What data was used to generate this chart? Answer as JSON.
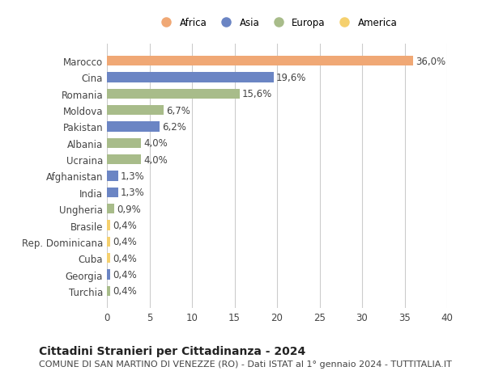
{
  "categories": [
    "Marocco",
    "Cina",
    "Romania",
    "Moldova",
    "Pakistan",
    "Albania",
    "Ucraina",
    "Afghanistan",
    "India",
    "Ungheria",
    "Brasile",
    "Rep. Dominicana",
    "Cuba",
    "Georgia",
    "Turchia"
  ],
  "values": [
    36.0,
    19.6,
    15.6,
    6.7,
    6.2,
    4.0,
    4.0,
    1.3,
    1.3,
    0.9,
    0.4,
    0.4,
    0.4,
    0.4,
    0.4
  ],
  "labels": [
    "36,0%",
    "19,6%",
    "15,6%",
    "6,7%",
    "6,2%",
    "4,0%",
    "4,0%",
    "1,3%",
    "1,3%",
    "0,9%",
    "0,4%",
    "0,4%",
    "0,4%",
    "0,4%",
    "0,4%"
  ],
  "continents": [
    "Africa",
    "Asia",
    "Europa",
    "Europa",
    "Asia",
    "Europa",
    "Europa",
    "Asia",
    "Asia",
    "Europa",
    "America",
    "America",
    "America",
    "Asia",
    "Europa"
  ],
  "colors": {
    "Africa": "#F0A875",
    "Asia": "#6B85C4",
    "Europa": "#A8BC8A",
    "America": "#F5D06E"
  },
  "legend_order": [
    "Africa",
    "Asia",
    "Europa",
    "America"
  ],
  "xlim": [
    0,
    40
  ],
  "xticks": [
    0,
    5,
    10,
    15,
    20,
    25,
    30,
    35,
    40
  ],
  "title": "Cittadini Stranieri per Cittadinanza - 2024",
  "subtitle": "COMUNE DI SAN MARTINO DI VENEZZE (RO) - Dati ISTAT al 1° gennaio 2024 - TUTTITALIA.IT",
  "bg_color": "#ffffff",
  "grid_color": "#cccccc",
  "bar_height": 0.6,
  "label_fontsize": 8.5,
  "tick_fontsize": 8.5,
  "title_fontsize": 10,
  "subtitle_fontsize": 8
}
